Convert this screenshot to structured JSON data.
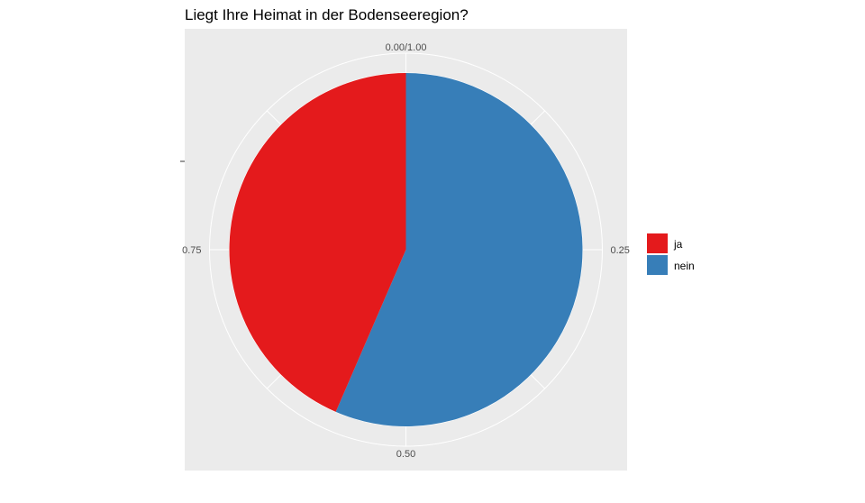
{
  "chart_data": {
    "type": "pie",
    "title": "Liegt Ihre Heimat in der Bodenseeregion?",
    "theta_ticks": [
      {
        "value": 0.0,
        "label": "0.00/1.00"
      },
      {
        "value": 0.25,
        "label": "0.25"
      },
      {
        "value": 0.5,
        "label": "0.50"
      },
      {
        "value": 0.75,
        "label": "0.75"
      }
    ],
    "slices": [
      {
        "label": "nein",
        "value": 0.565,
        "color": "#377EB8"
      },
      {
        "label": "ja",
        "value": 0.435,
        "color": "#E41A1C"
      }
    ],
    "legend": {
      "position": "right",
      "entries": [
        {
          "label": "ja",
          "color": "#E41A1C"
        },
        {
          "label": "nein",
          "color": "#377EB8"
        }
      ]
    },
    "panel_background": "#EBEBEB",
    "grid_color": "#FFFFFF"
  }
}
